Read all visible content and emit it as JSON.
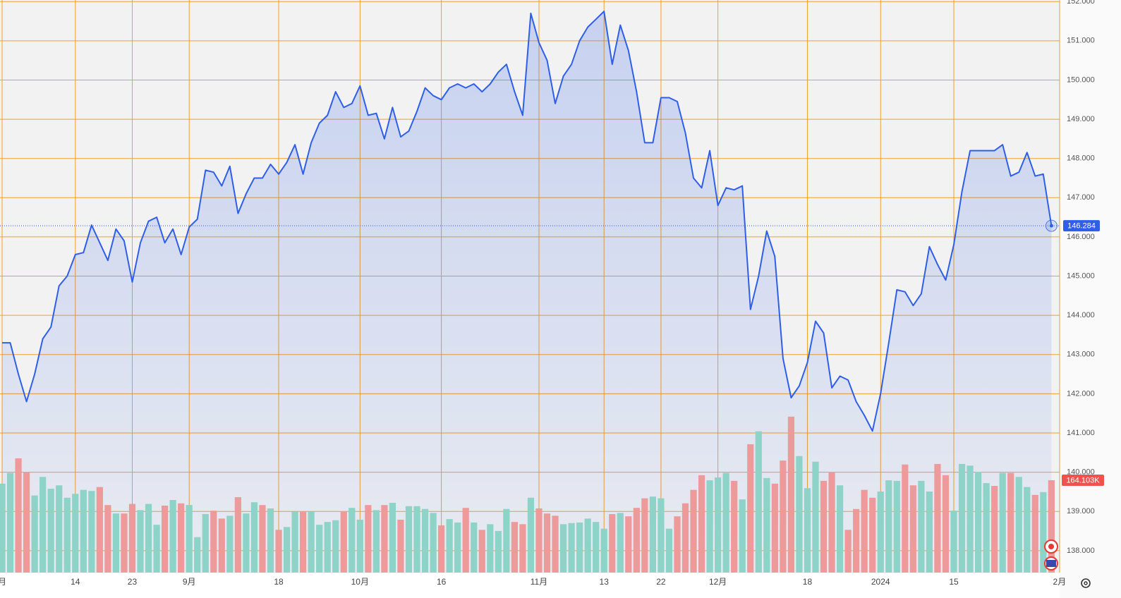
{
  "chart_data": {
    "type": "line",
    "categories": [
      "月",
      null,
      null,
      null,
      null,
      null,
      null,
      null,
      null,
      "14",
      null,
      null,
      null,
      null,
      null,
      null,
      "23",
      null,
      null,
      null,
      null,
      null,
      null,
      "9月",
      null,
      null,
      null,
      null,
      null,
      null,
      null,
      null,
      null,
      null,
      "18",
      null,
      null,
      null,
      null,
      null,
      null,
      null,
      null,
      null,
      "10月",
      null,
      null,
      null,
      null,
      null,
      null,
      null,
      null,
      null,
      "16",
      null,
      null,
      null,
      null,
      null,
      null,
      null,
      null,
      null,
      null,
      null,
      "11月",
      null,
      null,
      null,
      null,
      null,
      null,
      null,
      "13",
      null,
      null,
      null,
      null,
      null,
      null,
      "22",
      null,
      null,
      null,
      null,
      null,
      null,
      "12月",
      null,
      null,
      null,
      null,
      null,
      null,
      null,
      null,
      null,
      null,
      "18",
      null,
      null,
      null,
      null,
      null,
      null,
      null,
      null,
      "2024",
      null,
      null,
      null,
      null,
      null,
      null,
      null,
      null,
      "15",
      null,
      null,
      null,
      null,
      null,
      null,
      null,
      null,
      null,
      null,
      null,
      null,
      "2月"
    ],
    "series": [
      {
        "color": "#2f5fe8",
        "values": [
          143.3,
          143.3,
          142.5,
          141.8,
          142.5,
          143.4,
          143.7,
          144.75,
          145.0,
          145.55,
          145.6,
          146.3,
          145.85,
          145.4,
          146.2,
          145.9,
          144.85,
          145.85,
          146.4,
          146.5,
          145.85,
          146.2,
          145.55,
          146.25,
          146.45,
          147.7,
          147.65,
          147.3,
          147.8,
          146.6,
          147.1,
          147.5,
          147.5,
          147.85,
          147.6,
          147.9,
          148.35,
          147.6,
          148.4,
          148.9,
          149.1,
          149.7,
          149.3,
          149.4,
          149.85,
          149.1,
          149.15,
          148.5,
          149.3,
          148.55,
          148.7,
          149.2,
          149.8,
          149.6,
          149.5,
          149.8,
          149.9,
          149.8,
          149.9,
          149.7,
          149.9,
          150.2,
          150.4,
          149.7,
          149.1,
          151.7,
          150.95,
          150.5,
          149.4,
          150.1,
          150.4,
          151.0,
          151.35,
          151.55,
          151.75,
          150.4,
          151.4,
          150.75,
          149.7,
          148.4,
          148.4,
          149.55,
          149.55,
          149.45,
          148.65,
          147.5,
          147.25,
          148.2,
          146.8,
          147.25,
          147.2,
          147.3,
          144.15,
          145.0,
          146.15,
          145.5,
          142.9,
          141.9,
          142.2,
          142.8,
          143.85,
          143.55,
          142.15,
          142.45,
          142.35,
          141.8,
          141.45,
          141.05,
          142.0,
          143.3,
          144.65,
          144.6,
          144.25,
          144.55,
          145.75,
          145.3,
          144.9,
          145.8,
          147.15,
          148.2,
          148.2,
          148.2,
          148.2,
          148.35,
          147.55,
          147.65,
          148.15,
          147.55,
          147.6,
          146.284,
          null
        ]
      },
      {
        "type": "bar",
        "axis": "y2",
        "palette": {
          "up": "#8dd3c7",
          "down": "#ef9a9a"
        },
        "values": [
          158,
          177,
          203,
          179,
          137,
          170,
          149,
          155,
          133,
          140,
          147,
          145,
          152,
          120,
          105,
          105,
          122,
          111,
          122,
          85,
          119,
          129,
          123,
          120,
          63,
          104,
          110,
          96,
          101,
          134,
          105,
          125,
          120,
          114,
          76,
          81,
          108,
          108,
          108,
          85,
          90,
          93,
          108,
          115,
          94,
          120,
          111,
          120,
          124,
          94,
          118,
          118,
          113,
          106,
          84,
          95,
          89,
          115,
          89,
          76,
          86,
          74,
          113,
          90,
          86,
          133,
          114,
          105,
          101,
          86,
          88,
          89,
          96,
          90,
          78,
          104,
          106,
          100,
          115,
          132,
          135,
          132,
          78,
          100,
          123,
          147,
          173,
          164,
          169,
          177,
          163,
          130,
          228,
          251,
          168,
          158,
          199,
          277,
          207,
          150,
          197,
          163,
          179,
          155,
          76,
          113,
          147,
          133,
          144,
          164,
          163,
          192,
          155,
          163,
          144,
          193,
          173,
          110,
          193,
          190,
          179,
          159,
          154,
          177,
          177,
          170,
          152,
          138,
          143,
          164.103,
          null
        ],
        "value_labels": [
          null,
          null,
          null,
          null,
          null,
          null,
          null,
          null,
          null,
          null,
          null,
          null,
          null,
          null,
          null,
          null,
          null,
          null,
          null,
          null,
          null,
          null,
          null,
          null,
          null,
          null,
          null,
          null,
          null,
          null,
          null,
          null,
          null,
          null,
          null,
          null,
          null,
          null,
          null,
          null,
          null,
          null,
          null,
          null,
          null,
          null,
          null,
          null,
          null,
          null,
          null,
          null,
          null,
          null,
          null,
          null,
          null,
          null,
          null,
          null,
          null,
          null,
          null,
          null,
          null,
          null,
          null,
          null,
          null,
          null,
          null,
          null,
          null,
          null,
          null,
          null,
          null,
          null,
          null,
          null,
          null,
          null,
          null,
          null,
          null,
          null,
          null,
          null,
          null,
          null,
          null,
          null,
          null,
          null,
          null,
          null,
          null,
          null,
          null,
          null,
          null,
          null,
          null,
          null,
          null,
          null,
          null,
          null,
          null,
          null,
          null,
          null,
          null,
          null,
          null,
          null,
          null,
          null,
          null,
          null,
          null,
          null,
          null,
          null,
          null,
          null,
          null,
          null,
          null,
          "164.103K",
          null
        ],
        "directions": [
          "up",
          "up",
          "down",
          "down",
          "up",
          "up",
          "up",
          "up",
          "up",
          "up",
          "up",
          "up",
          "down",
          "down",
          "up",
          "down",
          "down",
          "up",
          "up",
          "up",
          "down",
          "up",
          "down",
          "up",
          "up",
          "up",
          "down",
          "down",
          "up",
          "down",
          "up",
          "up",
          "down",
          "up",
          "down",
          "up",
          "up",
          "down",
          "up",
          "up",
          "up",
          "up",
          "down",
          "up",
          "up",
          "down",
          "up",
          "down",
          "up",
          "down",
          "up",
          "up",
          "up",
          "up",
          "down",
          "up",
          "up",
          "down",
          "up",
          "down",
          "up",
          "up",
          "up",
          "down",
          "down",
          "up",
          "down",
          "down",
          "down",
          "up",
          "up",
          "up",
          "up",
          "up",
          "up",
          "down",
          "up",
          "down",
          "down",
          "down",
          "up",
          "up",
          "up",
          "down",
          "down",
          "down",
          "down",
          "up",
          "up",
          "up",
          "down",
          "up",
          "down",
          "up",
          "up",
          "down",
          "down",
          "down",
          "up",
          "up",
          "up",
          "down",
          "down",
          "up",
          "down",
          "down",
          "down",
          "down",
          "up",
          "up",
          "up",
          "down",
          "down",
          "up",
          "up",
          "down",
          "down",
          "up",
          "up",
          "up",
          "up",
          "up",
          "down",
          "up",
          "down",
          "up",
          "up",
          "down",
          "up",
          "down",
          null
        ]
      }
    ],
    "ylim": [
      137.44,
      152.04
    ],
    "yticks": [
      {
        "value": 138,
        "label": "138.000"
      },
      {
        "value": 139,
        "label": "139.000"
      },
      {
        "value": 140,
        "label": "140.000"
      },
      {
        "value": 141,
        "label": "141.000"
      },
      {
        "value": 142,
        "label": "142.000"
      },
      {
        "value": 143,
        "label": "143.000"
      },
      {
        "value": 144,
        "label": "144.000"
      },
      {
        "value": 145,
        "label": "145.000"
      },
      {
        "value": 146,
        "label": "146.000"
      },
      {
        "value": 147,
        "label": "147.000"
      },
      {
        "value": 148,
        "label": "148.000"
      },
      {
        "value": 149,
        "label": "149.000"
      },
      {
        "value": 150,
        "label": "150.000"
      },
      {
        "value": 151,
        "label": "151.000"
      },
      {
        "value": 152,
        "label": "152.000"
      }
    ],
    "y2lim": [
      0,
      1017
    ],
    "grid": true
  }
}
